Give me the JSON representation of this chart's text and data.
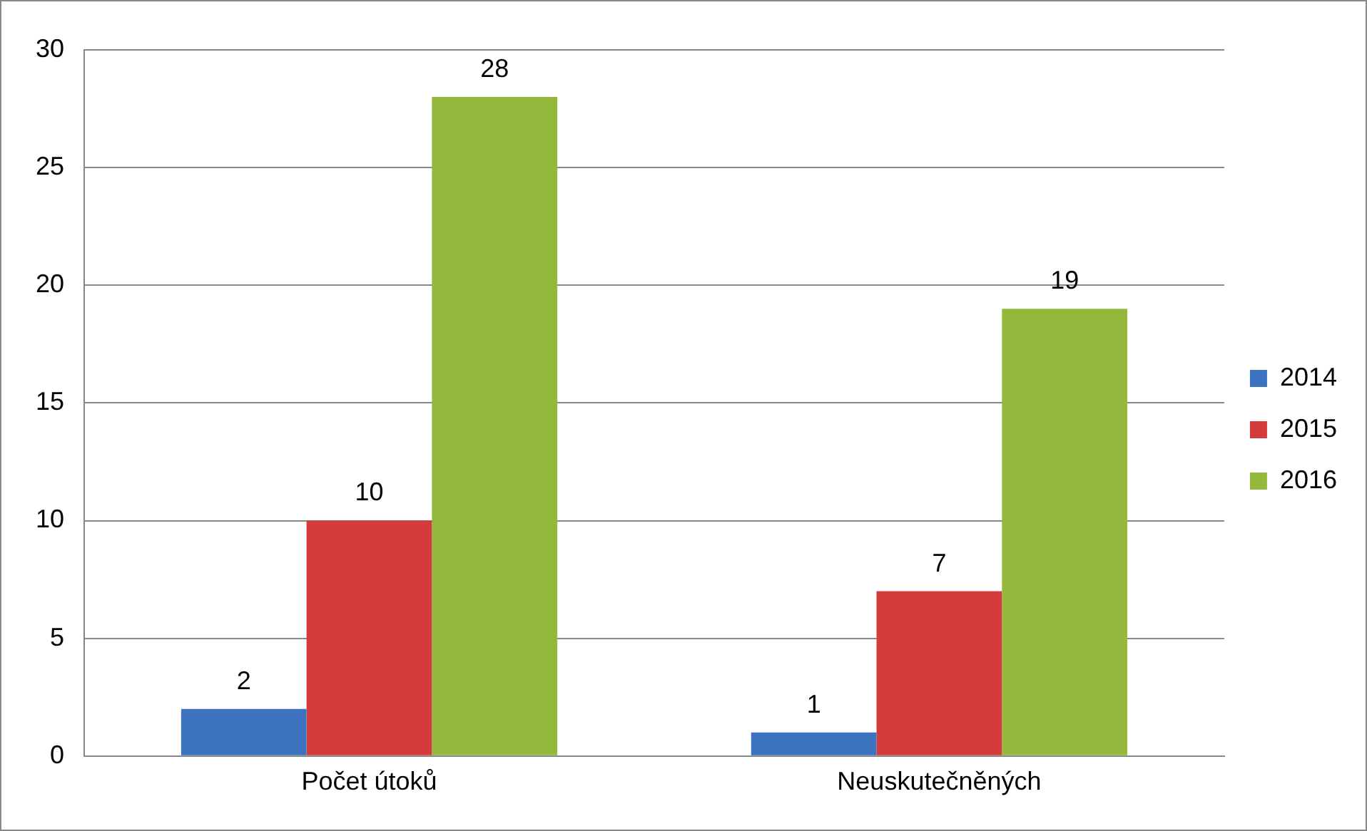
{
  "chart_data": {
    "type": "bar",
    "categories": [
      "Počet útoků",
      "Neuskutečněných"
    ],
    "series": [
      {
        "name": "2014",
        "color": "#3c72c0",
        "values": [
          2,
          1
        ]
      },
      {
        "name": "2015",
        "color": "#d33c3a",
        "values": [
          10,
          7
        ]
      },
      {
        "name": "2016",
        "color": "#93b83c",
        "values": [
          28,
          19
        ]
      }
    ],
    "ylim": [
      0,
      30
    ],
    "yticks": [
      0,
      5,
      10,
      15,
      20,
      25,
      30
    ],
    "grid": "y",
    "legend": "right",
    "data_labels": true
  }
}
